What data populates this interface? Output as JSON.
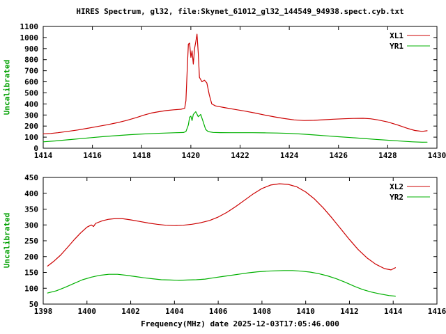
{
  "title": "HIRES Spectrum, gl32, file:Skynet_61012_gl32_144549_94938.spect.cyb.txt",
  "xlabel": "Frequency(MHz) date 2025-12-03T17:05:46.000",
  "colors": {
    "red": "#cc0000",
    "green": "#00b000",
    "axis": "#000000",
    "text": "#000000",
    "ylabel": "#00a000",
    "background": "#ffffff"
  },
  "chart_data": [
    {
      "type": "line",
      "panel": "top",
      "ylabel": "Uncalibrated",
      "xlim": [
        1414,
        1430
      ],
      "ylim": [
        0,
        1100
      ],
      "xticks": [
        1414,
        1416,
        1418,
        1420,
        1422,
        1424,
        1426,
        1428,
        1430
      ],
      "yticks": [
        0,
        100,
        200,
        300,
        400,
        500,
        600,
        700,
        800,
        900,
        1000,
        1100
      ],
      "grid": false,
      "legend_position": "top-right",
      "series": [
        {
          "name": "XL1",
          "color": "#cc0000",
          "points": [
            [
              1414.0,
              130
            ],
            [
              1414.3,
              133
            ],
            [
              1414.6,
              140
            ],
            [
              1415.0,
              152
            ],
            [
              1415.4,
              165
            ],
            [
              1415.8,
              180
            ],
            [
              1416.2,
              196
            ],
            [
              1416.6,
              212
            ],
            [
              1417.0,
              230
            ],
            [
              1417.4,
              252
            ],
            [
              1417.8,
              278
            ],
            [
              1418.1,
              300
            ],
            [
              1418.4,
              318
            ],
            [
              1418.7,
              330
            ],
            [
              1419.0,
              340
            ],
            [
              1419.3,
              347
            ],
            [
              1419.6,
              352
            ],
            [
              1419.75,
              360
            ],
            [
              1419.8,
              430
            ],
            [
              1419.85,
              700
            ],
            [
              1419.9,
              940
            ],
            [
              1419.95,
              950
            ],
            [
              1420.0,
              820
            ],
            [
              1420.05,
              880
            ],
            [
              1420.1,
              760
            ],
            [
              1420.15,
              900
            ],
            [
              1420.2,
              960
            ],
            [
              1420.25,
              1030
            ],
            [
              1420.3,
              860
            ],
            [
              1420.35,
              640
            ],
            [
              1420.45,
              600
            ],
            [
              1420.55,
              615
            ],
            [
              1420.65,
              590
            ],
            [
              1420.75,
              480
            ],
            [
              1420.85,
              400
            ],
            [
              1421.0,
              382
            ],
            [
              1421.4,
              365
            ],
            [
              1421.8,
              350
            ],
            [
              1422.2,
              335
            ],
            [
              1422.6,
              318
            ],
            [
              1423.0,
              300
            ],
            [
              1423.4,
              283
            ],
            [
              1423.8,
              268
            ],
            [
              1424.2,
              256
            ],
            [
              1424.6,
              250
            ],
            [
              1425.0,
              252
            ],
            [
              1425.4,
              257
            ],
            [
              1425.8,
              262
            ],
            [
              1426.2,
              266
            ],
            [
              1426.6,
              269
            ],
            [
              1427.0,
              270
            ],
            [
              1427.3,
              266
            ],
            [
              1427.6,
              256
            ],
            [
              1428.0,
              237
            ],
            [
              1428.4,
              210
            ],
            [
              1428.8,
              180
            ],
            [
              1429.1,
              160
            ],
            [
              1429.4,
              152
            ],
            [
              1429.6,
              158
            ]
          ]
        },
        {
          "name": "YR1",
          "color": "#00b000",
          "points": [
            [
              1414.0,
              58
            ],
            [
              1414.5,
              66
            ],
            [
              1415.0,
              76
            ],
            [
              1415.5,
              86
            ],
            [
              1416.0,
              96
            ],
            [
              1416.5,
              106
            ],
            [
              1417.0,
              114
            ],
            [
              1417.5,
              122
            ],
            [
              1418.0,
              128
            ],
            [
              1418.5,
              133
            ],
            [
              1419.0,
              137
            ],
            [
              1419.4,
              140
            ],
            [
              1419.7,
              142
            ],
            [
              1419.8,
              150
            ],
            [
              1419.9,
              210
            ],
            [
              1419.95,
              280
            ],
            [
              1420.0,
              290
            ],
            [
              1420.05,
              250
            ],
            [
              1420.1,
              305
            ],
            [
              1420.2,
              330
            ],
            [
              1420.3,
              285
            ],
            [
              1420.4,
              305
            ],
            [
              1420.5,
              240
            ],
            [
              1420.6,
              170
            ],
            [
              1420.7,
              150
            ],
            [
              1420.9,
              143
            ],
            [
              1421.2,
              141
            ],
            [
              1421.6,
              140
            ],
            [
              1422.0,
              140
            ],
            [
              1422.5,
              140
            ],
            [
              1423.0,
              139
            ],
            [
              1423.5,
              137
            ],
            [
              1424.0,
              134
            ],
            [
              1424.5,
              128
            ],
            [
              1425.0,
              120
            ],
            [
              1425.5,
              112
            ],
            [
              1426.0,
              104
            ],
            [
              1426.5,
              96
            ],
            [
              1427.0,
              88
            ],
            [
              1427.5,
              80
            ],
            [
              1428.0,
              72
            ],
            [
              1428.5,
              65
            ],
            [
              1429.0,
              58
            ],
            [
              1429.4,
              54
            ],
            [
              1429.6,
              55
            ]
          ]
        }
      ]
    },
    {
      "type": "line",
      "panel": "bottom",
      "ylabel": "Uncalibrated",
      "xlim": [
        1398,
        1416
      ],
      "ylim": [
        50,
        450
      ],
      "xticks": [
        1398,
        1400,
        1402,
        1404,
        1406,
        1408,
        1410,
        1412,
        1414,
        1416
      ],
      "yticks": [
        50,
        100,
        150,
        200,
        250,
        300,
        350,
        400,
        450
      ],
      "grid": false,
      "legend_position": "top-right",
      "series": [
        {
          "name": "XL2",
          "color": "#cc0000",
          "points": [
            [
              1398.2,
              170
            ],
            [
              1398.5,
              186
            ],
            [
              1398.8,
              205
            ],
            [
              1399.1,
              228
            ],
            [
              1399.4,
              252
            ],
            [
              1399.7,
              274
            ],
            [
              1400.0,
              293
            ],
            [
              1400.2,
              300
            ],
            [
              1400.3,
              295
            ],
            [
              1400.4,
              305
            ],
            [
              1400.7,
              313
            ],
            [
              1401.0,
              318
            ],
            [
              1401.3,
              320
            ],
            [
              1401.6,
              320
            ],
            [
              1402.0,
              316
            ],
            [
              1402.4,
              311
            ],
            [
              1402.8,
              306
            ],
            [
              1403.2,
              302
            ],
            [
              1403.6,
              299
            ],
            [
              1404.0,
              298
            ],
            [
              1404.4,
              299
            ],
            [
              1404.8,
              302
            ],
            [
              1405.2,
              307
            ],
            [
              1405.6,
              314
            ],
            [
              1406.0,
              325
            ],
            [
              1406.4,
              340
            ],
            [
              1406.8,
              358
            ],
            [
              1407.2,
              378
            ],
            [
              1407.6,
              398
            ],
            [
              1408.0,
              415
            ],
            [
              1408.4,
              426
            ],
            [
              1408.8,
              430
            ],
            [
              1409.2,
              428
            ],
            [
              1409.6,
              420
            ],
            [
              1410.0,
              404
            ],
            [
              1410.4,
              382
            ],
            [
              1410.8,
              354
            ],
            [
              1411.2,
              322
            ],
            [
              1411.6,
              288
            ],
            [
              1412.0,
              254
            ],
            [
              1412.4,
              222
            ],
            [
              1412.8,
              196
            ],
            [
              1413.2,
              176
            ],
            [
              1413.6,
              162
            ],
            [
              1413.9,
              158
            ],
            [
              1414.1,
              165
            ]
          ]
        },
        {
          "name": "YR2",
          "color": "#00b000",
          "points": [
            [
              1398.2,
              85
            ],
            [
              1398.6,
              92
            ],
            [
              1399.0,
              103
            ],
            [
              1399.4,
              115
            ],
            [
              1399.8,
              127
            ],
            [
              1400.2,
              135
            ],
            [
              1400.6,
              141
            ],
            [
              1401.0,
              144
            ],
            [
              1401.4,
              144
            ],
            [
              1401.8,
              141
            ],
            [
              1402.2,
              137
            ],
            [
              1402.6,
              133
            ],
            [
              1403.0,
              130
            ],
            [
              1403.4,
              127
            ],
            [
              1403.8,
              126
            ],
            [
              1404.2,
              125
            ],
            [
              1404.6,
              126
            ],
            [
              1405.0,
              127
            ],
            [
              1405.4,
              129
            ],
            [
              1405.8,
              133
            ],
            [
              1406.2,
              137
            ],
            [
              1406.6,
              141
            ],
            [
              1407.0,
              145
            ],
            [
              1407.4,
              149
            ],
            [
              1407.8,
              152
            ],
            [
              1408.2,
              154
            ],
            [
              1408.6,
              155
            ],
            [
              1409.0,
              156
            ],
            [
              1409.4,
              156
            ],
            [
              1409.8,
              154
            ],
            [
              1410.2,
              151
            ],
            [
              1410.6,
              146
            ],
            [
              1411.0,
              139
            ],
            [
              1411.4,
              130
            ],
            [
              1411.8,
              119
            ],
            [
              1412.2,
              107
            ],
            [
              1412.6,
              96
            ],
            [
              1413.0,
              88
            ],
            [
              1413.4,
              82
            ],
            [
              1413.8,
              77
            ],
            [
              1414.1,
              75
            ]
          ]
        }
      ]
    }
  ]
}
